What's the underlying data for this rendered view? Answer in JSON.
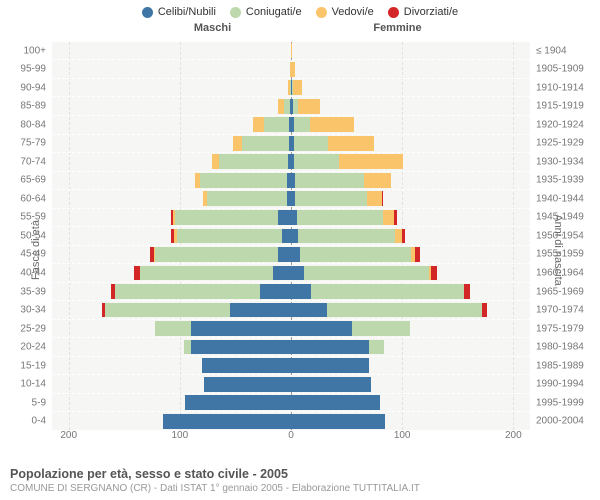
{
  "chart": {
    "type": "population-pyramid",
    "background_color": "#f6f6f5",
    "grid_dash_color": "#ffffff",
    "center_line_color": "#999999",
    "tick_color": "#777777",
    "legend": [
      {
        "label": "Celibi/Nubili",
        "color": "#3f76a6"
      },
      {
        "label": "Coniugati/e",
        "color": "#bed8ad"
      },
      {
        "label": "Vedovi/e",
        "color": "#fac56a"
      },
      {
        "label": "Divorziati/e",
        "color": "#d22726"
      }
    ],
    "headers": {
      "left": "Maschi",
      "right": "Femmine"
    },
    "y_label_left": "Fasce di età",
    "y_label_right": "Anni di nascita",
    "x_ticks": [
      200,
      100,
      0,
      100,
      200
    ],
    "x_max": 215,
    "age_groups": [
      {
        "age": "0-4",
        "birth": "2000-2004",
        "m": [
          115,
          0,
          0,
          0
        ],
        "f": [
          85,
          0,
          0,
          0
        ]
      },
      {
        "age": "5-9",
        "birth": "1995-1999",
        "m": [
          95,
          0,
          0,
          0
        ],
        "f": [
          80,
          0,
          0,
          0
        ]
      },
      {
        "age": "10-14",
        "birth": "1990-1994",
        "m": [
          78,
          0,
          0,
          0
        ],
        "f": [
          72,
          0,
          0,
          0
        ]
      },
      {
        "age": "15-19",
        "birth": "1985-1989",
        "m": [
          80,
          0,
          0,
          0
        ],
        "f": [
          70,
          0,
          0,
          0
        ]
      },
      {
        "age": "20-24",
        "birth": "1980-1984",
        "m": [
          90,
          6,
          0,
          0
        ],
        "f": [
          70,
          14,
          0,
          0
        ]
      },
      {
        "age": "25-29",
        "birth": "1975-1979",
        "m": [
          90,
          32,
          0,
          0
        ],
        "f": [
          55,
          52,
          0,
          0
        ]
      },
      {
        "age": "30-34",
        "birth": "1970-1974",
        "m": [
          55,
          112,
          0,
          3
        ],
        "f": [
          32,
          140,
          0,
          4
        ]
      },
      {
        "age": "35-39",
        "birth": "1965-1969",
        "m": [
          28,
          130,
          0,
          4
        ],
        "f": [
          18,
          138,
          0,
          5
        ]
      },
      {
        "age": "40-44",
        "birth": "1960-1964",
        "m": [
          16,
          120,
          0,
          5
        ],
        "f": [
          12,
          112,
          2,
          5
        ]
      },
      {
        "age": "45-49",
        "birth": "1955-1959",
        "m": [
          12,
          110,
          1,
          4
        ],
        "f": [
          8,
          100,
          4,
          4
        ]
      },
      {
        "age": "50-54",
        "birth": "1950-1954",
        "m": [
          8,
          95,
          2,
          3
        ],
        "f": [
          6,
          88,
          6,
          3
        ]
      },
      {
        "age": "55-59",
        "birth": "1945-1949",
        "m": [
          12,
          92,
          2,
          2
        ],
        "f": [
          5,
          78,
          10,
          2
        ]
      },
      {
        "age": "60-64",
        "birth": "1940-1944",
        "m": [
          4,
          72,
          3,
          0
        ],
        "f": [
          4,
          64,
          14,
          1
        ]
      },
      {
        "age": "65-69",
        "birth": "1935-1939",
        "m": [
          4,
          78,
          4,
          0
        ],
        "f": [
          4,
          62,
          24,
          0
        ]
      },
      {
        "age": "70-74",
        "birth": "1930-1934",
        "m": [
          3,
          62,
          6,
          0
        ],
        "f": [
          3,
          40,
          58,
          0
        ]
      },
      {
        "age": "75-79",
        "birth": "1925-1929",
        "m": [
          2,
          42,
          8,
          0
        ],
        "f": [
          3,
          30,
          42,
          0
        ]
      },
      {
        "age": "80-84",
        "birth": "1920-1924",
        "m": [
          2,
          22,
          10,
          0
        ],
        "f": [
          3,
          14,
          40,
          0
        ]
      },
      {
        "age": "85-89",
        "birth": "1915-1919",
        "m": [
          1,
          5,
          6,
          0
        ],
        "f": [
          2,
          4,
          20,
          0
        ]
      },
      {
        "age": "90-94",
        "birth": "1910-1914",
        "m": [
          0,
          1,
          2,
          0
        ],
        "f": [
          1,
          1,
          8,
          0
        ]
      },
      {
        "age": "95-99",
        "birth": "1905-1909",
        "m": [
          0,
          0,
          1,
          0
        ],
        "f": [
          0,
          0,
          4,
          0
        ]
      },
      {
        "age": "100+",
        "birth": "≤ 1904",
        "m": [
          0,
          0,
          0,
          0
        ],
        "f": [
          0,
          0,
          1,
          0
        ]
      }
    ],
    "title": "Popolazione per età, sesso e stato civile - 2005",
    "subtitle": "COMUNE DI SERGNANO (CR) - Dati ISTAT 1° gennaio 2005 - Elaborazione TUTTITALIA.IT"
  }
}
